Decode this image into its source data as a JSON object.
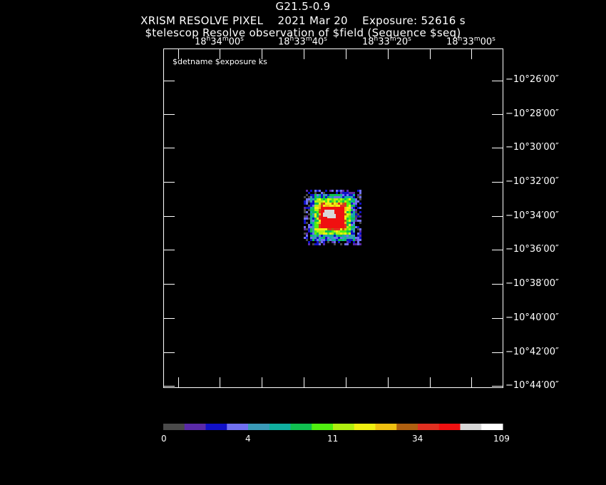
{
  "title": {
    "object": "G21.5-0.9",
    "line2": "XRISM RESOLVE PIXEL    2021 Mar 20    Exposure: 52616 s",
    "line3": "$telescop Resolve observation of $field (Sequence $seq)"
  },
  "plot": {
    "annotation": "$detname $exposure ks",
    "ra_ticks": [
      {
        "h": "18",
        "m": "34",
        "s": "00"
      },
      {
        "h": "18",
        "m": "33",
        "s": "40"
      },
      {
        "h": "18",
        "m": "33",
        "s": "20"
      },
      {
        "h": "18",
        "m": "33",
        "s": "00"
      }
    ],
    "dec_ticks": [
      "−10°26′00″",
      "−10°28′00″",
      "−10°30′00″",
      "−10°32′00″",
      "−10°34′00″",
      "−10°36′00″",
      "−10°38′00″",
      "−10°40′00″",
      "−10°42′00″",
      "−10°44′00″"
    ]
  },
  "colorbar": {
    "colors": [
      "#4a4a4a",
      "#5a2aa8",
      "#1010c8",
      "#7070f0",
      "#3a9ab8",
      "#10b0a0",
      "#10c050",
      "#50f010",
      "#b0f010",
      "#f0f010",
      "#f0c010",
      "#b06010",
      "#e03020",
      "#f01010",
      "#d8d8d8",
      "#ffffff"
    ],
    "labels": [
      "0",
      "4",
      "11",
      "34",
      "109"
    ]
  }
}
